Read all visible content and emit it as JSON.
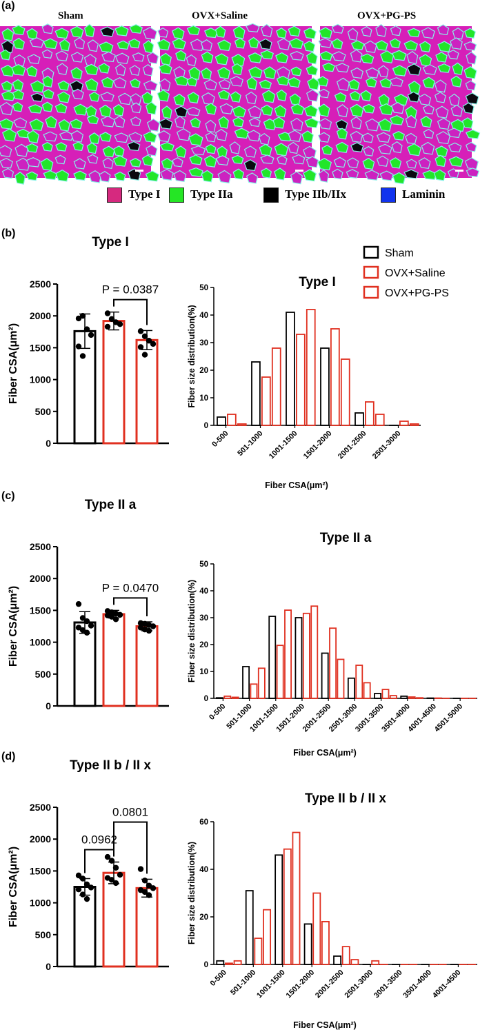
{
  "panels": {
    "a": "(a)",
    "b": "(b)",
    "c": "(c)",
    "d": "(d)"
  },
  "images": [
    {
      "title": "Sham"
    },
    {
      "title": "OVX+Saline"
    },
    {
      "title": "OVX+PG-PS"
    }
  ],
  "stain_legend": [
    {
      "label": "Type I",
      "color": "#d6297f"
    },
    {
      "label": "Type IIa",
      "color": "#25e625"
    },
    {
      "label": "Type IIb/IIx",
      "color": "#000000"
    },
    {
      "label": "Laminin",
      "color": "#1133ee"
    }
  ],
  "group_legend": [
    {
      "label": "Sham",
      "color": "#000000"
    },
    {
      "label": "OVX+Saline",
      "color": "#e03020"
    },
    {
      "label": "OVX+PG-PS",
      "color": "#e03020"
    }
  ],
  "colors": {
    "sham": "#000000",
    "ovx": "#e03020"
  },
  "chart_data": [
    {
      "id": "b-bar",
      "type": "bar",
      "title": "Type I",
      "ylabel": "Fiber CSA(μm²)",
      "ylim": [
        0,
        2500
      ],
      "yticks": [
        0,
        500,
        1000,
        1500,
        2000,
        2500
      ],
      "categories": [
        "Sham",
        "OVX+Saline",
        "OVX+PG-PS"
      ],
      "values": [
        1760,
        1920,
        1620
      ],
      "errors": [
        270,
        140,
        150
      ],
      "points": [
        [
          1960,
          2000,
          1790,
          1700,
          1520,
          1370
        ],
        [
          2040,
          1950,
          1900,
          1870,
          1830,
          1950
        ],
        [
          1760,
          1680,
          1610,
          1560,
          1510,
          1390
        ]
      ],
      "comparisons": [
        {
          "from": 1,
          "to": 2,
          "label": "P = 0.0387"
        }
      ]
    },
    {
      "id": "b-hist",
      "type": "bar",
      "title": "Type I",
      "ylabel": "Fiber size  distribution(%)",
      "xlabel": "Fiber CSA(μm²)",
      "ylim": [
        0,
        50
      ],
      "yticks": [
        0,
        10,
        20,
        30,
        40,
        50
      ],
      "categories": [
        "0-500",
        "501-1000",
        "1001-1500",
        "1501-2000",
        "2001-2500",
        "2501-3000"
      ],
      "series": [
        {
          "name": "Sham",
          "values": [
            3,
            23,
            41,
            28,
            4.5,
            0
          ]
        },
        {
          "name": "OVX+Saline",
          "values": [
            4,
            17.5,
            33,
            35,
            8.5,
            1.5
          ]
        },
        {
          "name": "OVX+PG-PS",
          "values": [
            0.5,
            28,
            42,
            24,
            4,
            0.5
          ]
        }
      ]
    },
    {
      "id": "c-bar",
      "type": "bar",
      "title": "Type II a",
      "ylabel": "Fiber CSA(μm²)",
      "ylim": [
        0,
        2500
      ],
      "yticks": [
        0,
        500,
        1000,
        1500,
        2000,
        2500
      ],
      "categories": [
        "Sham",
        "OVX+Saline",
        "OVX+PG-PS"
      ],
      "values": [
        1310,
        1440,
        1250
      ],
      "errors": [
        170,
        60,
        70
      ],
      "points": [
        [
          1600,
          1380,
          1330,
          1260,
          1230,
          1190,
          1150
        ],
        [
          1490,
          1470,
          1450,
          1430,
          1420,
          1400,
          1360
        ],
        [
          1300,
          1290,
          1270,
          1250,
          1230,
          1200,
          1180
        ]
      ],
      "comparisons": [
        {
          "from": 1,
          "to": 2,
          "label": "P = 0.0470"
        }
      ]
    },
    {
      "id": "c-hist",
      "type": "bar",
      "title": "Type II a",
      "ylabel": "Fiber size  distribution(%)",
      "xlabel": "Fiber CSA(μm²)",
      "ylim": [
        0,
        50
      ],
      "yticks": [
        0,
        10,
        20,
        30,
        40,
        50
      ],
      "categories": [
        "0-500",
        "501-1000",
        "1001-1500",
        "1501-2000",
        "2001-2500",
        "2501-3000",
        "3001-3500",
        "3501-4000",
        "4001-4500",
        "4501-5000"
      ],
      "series": [
        {
          "name": "Sham",
          "values": [
            0.2,
            11.8,
            30.5,
            30,
            16.8,
            7.5,
            1.8,
            0.8,
            0.1,
            0
          ]
        },
        {
          "name": "OVX+Saline",
          "values": [
            0.8,
            5.3,
            19.7,
            31.6,
            26.1,
            12.3,
            3.3,
            0.5,
            0.1,
            0
          ]
        },
        {
          "name": "OVX+PG-PS",
          "values": [
            0.4,
            11.2,
            32.8,
            34.3,
            14.5,
            5.8,
            1,
            0.2,
            0,
            0
          ]
        }
      ]
    },
    {
      "id": "d-bar",
      "type": "bar",
      "title": "Type II b / II x",
      "ylabel": "Fiber CSA(μm²)",
      "ylim": [
        0,
        2500
      ],
      "yticks": [
        0,
        500,
        1000,
        1500,
        2000,
        2500
      ],
      "categories": [
        "Sham",
        "OVX+Saline",
        "OVX+PG-PS"
      ],
      "values": [
        1250,
        1470,
        1230
      ],
      "errors": [
        130,
        170,
        140
      ],
      "points": [
        [
          1430,
          1380,
          1290,
          1240,
          1210,
          1130,
          1060
        ],
        [
          1720,
          1660,
          1550,
          1440,
          1390,
          1360,
          1310
        ],
        [
          1530,
          1350,
          1270,
          1230,
          1200,
          1170,
          1120
        ]
      ],
      "comparisons": [
        {
          "from": 0,
          "to": 1,
          "label": "0.0962"
        },
        {
          "from": 1,
          "to": 2,
          "label": "0.0801"
        }
      ]
    },
    {
      "id": "d-hist",
      "type": "bar",
      "title": "Type II b / II x",
      "ylabel": "Fiber size  distribution(%)",
      "xlabel": "Fiber CSA(μm²)",
      "ylim": [
        0,
        60
      ],
      "yticks": [
        0,
        20,
        40,
        60
      ],
      "categories": [
        "0-500",
        "501-1000",
        "1001-1500",
        "1501-2000",
        "2001-2500",
        "2501-3000",
        "3001-3500",
        "3501-4000",
        "4001-4500"
      ],
      "series": [
        {
          "name": "Sham",
          "values": [
            1.5,
            31,
            46,
            17,
            3.5,
            0,
            0,
            0,
            0
          ]
        },
        {
          "name": "OVX+Saline",
          "values": [
            0.5,
            11,
            48.5,
            30,
            7.5,
            1.5,
            0,
            0,
            0
          ]
        },
        {
          "name": "OVX+PG-PS",
          "values": [
            1.5,
            23,
            55.5,
            18,
            2,
            0,
            0,
            0,
            0
          ]
        }
      ]
    }
  ]
}
